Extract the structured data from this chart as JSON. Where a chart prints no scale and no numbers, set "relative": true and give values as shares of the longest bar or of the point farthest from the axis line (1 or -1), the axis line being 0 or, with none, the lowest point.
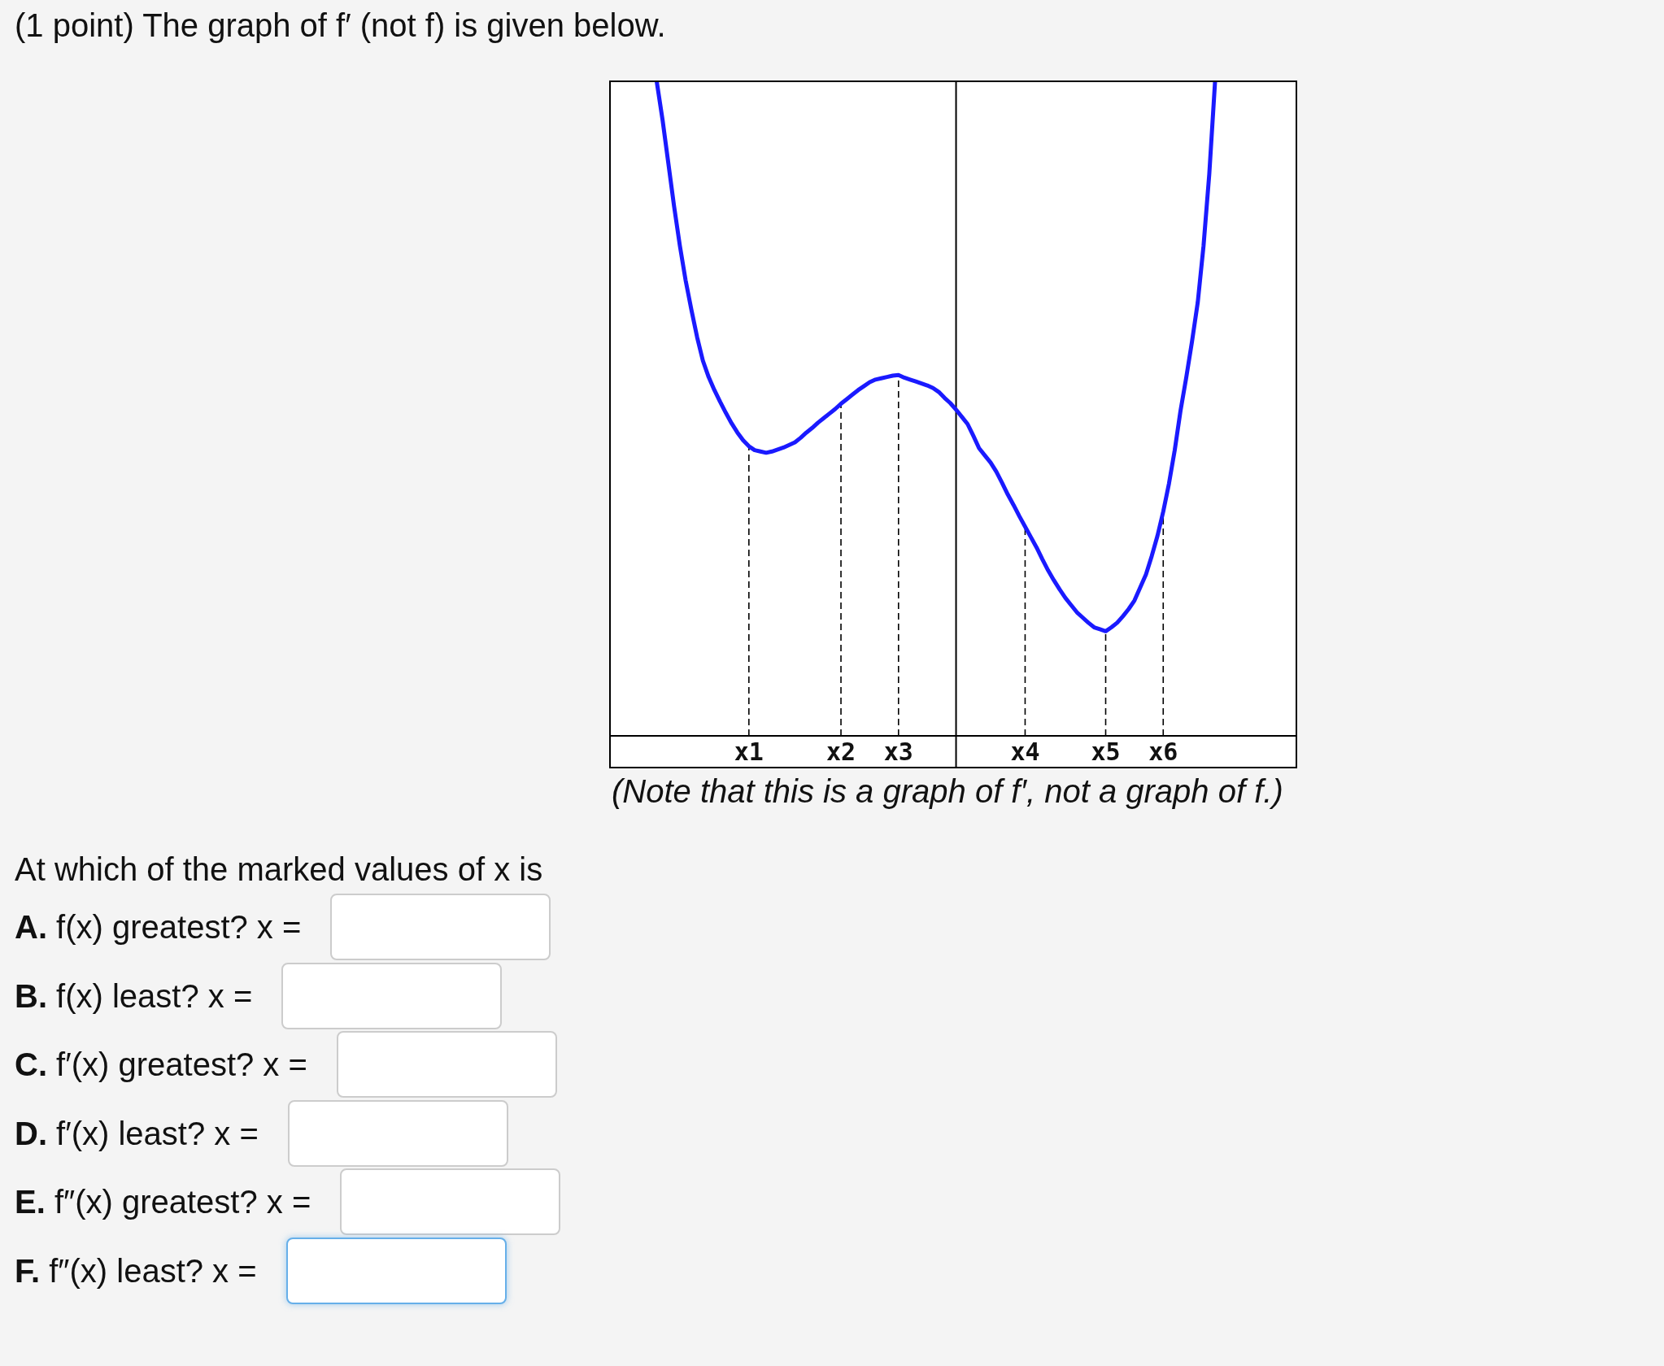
{
  "chart_data": {
    "type": "line",
    "title": "(1 point) The graph of f′ (not f) is given below.",
    "categories": [
      null,
      null,
      null,
      null,
      null,
      null,
      null,
      null,
      null,
      null,
      null,
      null,
      null,
      null,
      null,
      null,
      null,
      null,
      null,
      null,
      null,
      null,
      null,
      null,
      "x1",
      null,
      null,
      null,
      null,
      null,
      null,
      null,
      null,
      null,
      null,
      null,
      null,
      null,
      null,
      null,
      "x2",
      null,
      null,
      null,
      null,
      null,
      null,
      null,
      null,
      null,
      "x3",
      null,
      null,
      null,
      null,
      null,
      null,
      null,
      null,
      null,
      null,
      null,
      null,
      null,
      null,
      null,
      null,
      null,
      null,
      null,
      null,
      null,
      "x4",
      null,
      null,
      null,
      null,
      null,
      null,
      null,
      null,
      null,
      null,
      null,
      null,
      null,
      "x5",
      null,
      null,
      null,
      null,
      null,
      null,
      null,
      null,
      null,
      "x6",
      null,
      null,
      null,
      null,
      null,
      null,
      null,
      null,
      null,
      null,
      null,
      null,
      null,
      null,
      null,
      null,
      null,
      null,
      null,
      null,
      null,
      null,
      null
    ],
    "relative": true,
    "series": [
      {
        "color": "#1a1aff",
        "values": [
          null,
          null,
          null,
          null,
          null,
          null,
          null,
          null,
          1,
          0.942,
          0.876,
          0.81,
          0.75,
          0.697,
          0.652,
          0.61,
          0.574,
          0.549,
          0.529,
          0.511,
          0.494,
          0.478,
          0.464,
          0.452,
          0.443,
          0.437,
          0.435,
          0.433,
          0.435,
          0.438,
          0.441,
          0.445,
          0.449,
          0.456,
          0.464,
          0.471,
          0.479,
          0.486,
          0.493,
          0.5,
          0.508,
          0.515,
          0.522,
          0.529,
          0.535,
          0.541,
          0.545,
          0.547,
          0.549,
          0.551,
          0.552,
          0.548,
          0.545,
          0.542,
          0.539,
          0.536,
          0.532,
          0.526,
          0.517,
          0.509,
          0.499,
          0.488,
          0.477,
          0.459,
          0.44,
          0.429,
          0.418,
          0.404,
          0.387,
          0.369,
          0.353,
          0.336,
          0.32,
          0.304,
          0.288,
          0.27,
          0.253,
          0.238,
          0.224,
          0.211,
          0.2,
          0.189,
          0.181,
          0.173,
          0.166,
          0.163,
          0.16,
          0.166,
          0.173,
          0.183,
          0.194,
          0.207,
          0.227,
          0.247,
          0.275,
          0.306,
          0.343,
          0.386,
          0.437,
          0.497,
          0.548,
          0.603,
          0.663,
          0.749,
          0.859,
          1,
          null,
          null,
          null,
          null,
          null,
          null,
          null,
          null,
          null,
          null,
          null,
          null,
          null,
          null
        ]
      }
    ],
    "marker": "none",
    "line_style": "solid",
    "ref_lines": [
      {
        "axis": "x",
        "value": "x1",
        "line_style": "dashed",
        "color": "#000000"
      },
      {
        "axis": "x",
        "value": "x2",
        "line_style": "dashed",
        "color": "#000000"
      },
      {
        "axis": "x",
        "value": "x3",
        "line_style": "dashed",
        "color": "#000000"
      },
      {
        "axis": "x",
        "value": "x4",
        "line_style": "dashed",
        "color": "#000000"
      },
      {
        "axis": "x",
        "value": "x5",
        "line_style": "dashed",
        "color": "#000000"
      },
      {
        "axis": "x",
        "value": "x6",
        "line_style": "dashed",
        "color": "#000000"
      }
    ],
    "annotations": [
      "(Note that this is a graph of f′, not a graph of f.)",
      "At which of the marked values of x is",
      "A. f(x) greatest? x =",
      "B. f(x) least? x =",
      "C. f′(x) greatest? x =",
      "D. f′(x) least? x =",
      "E. f″(x) greatest? x =",
      "F. f″(x) least? x ="
    ]
  }
}
